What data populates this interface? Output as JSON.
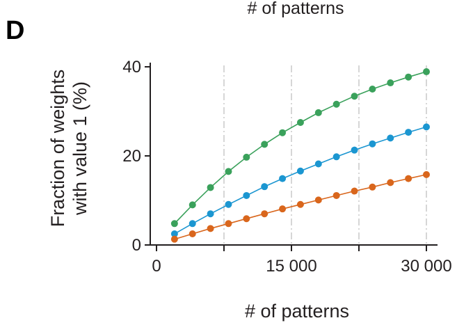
{
  "panel_label": "D",
  "top_title": "# of patterns",
  "chart_data": {
    "type": "line",
    "title": "# of patterns",
    "xlabel": "# of patterns",
    "ylabel": [
      "Fraction of weights",
      "with value 1 (%)"
    ],
    "xlim": [
      0,
      30000
    ],
    "ylim": [
      0,
      40
    ],
    "x_ticks": [
      {
        "value": 0,
        "label": "0"
      },
      {
        "value": 15000,
        "label": "15 000"
      },
      {
        "value": 30000,
        "label": "30 000"
      }
    ],
    "x_minor_ticks": [
      7500,
      22500
    ],
    "y_ticks": [
      {
        "value": 0,
        "label": "0"
      },
      {
        "value": 20,
        "label": "20"
      },
      {
        "value": 40,
        "label": "40"
      }
    ],
    "grid": "vertical dash-dot lines at 7 500, 15 000, 22 500, 30 000",
    "x": [
      2000,
      4000,
      6000,
      8000,
      10000,
      12000,
      14000,
      16000,
      18000,
      20000,
      22000,
      24000,
      26000,
      28000,
      30000
    ],
    "series": [
      {
        "color": "#3aa15b",
        "values": [
          4.8,
          9.0,
          12.9,
          16.5,
          19.7,
          22.6,
          25.2,
          27.5,
          29.7,
          31.6,
          33.4,
          35.0,
          36.4,
          37.7,
          38.9
        ]
      },
      {
        "color": "#1b96d1",
        "values": [
          2.5,
          4.8,
          7.0,
          9.1,
          11.1,
          13.1,
          14.9,
          16.6,
          18.2,
          19.8,
          21.3,
          22.7,
          24.0,
          25.3,
          26.5
        ]
      },
      {
        "color": "#d9661c",
        "values": [
          1.3,
          2.5,
          3.7,
          4.8,
          5.9,
          7.0,
          8.1,
          9.1,
          10.1,
          11.1,
          12.1,
          13.0,
          14.0,
          14.9,
          15.8
        ]
      }
    ]
  }
}
